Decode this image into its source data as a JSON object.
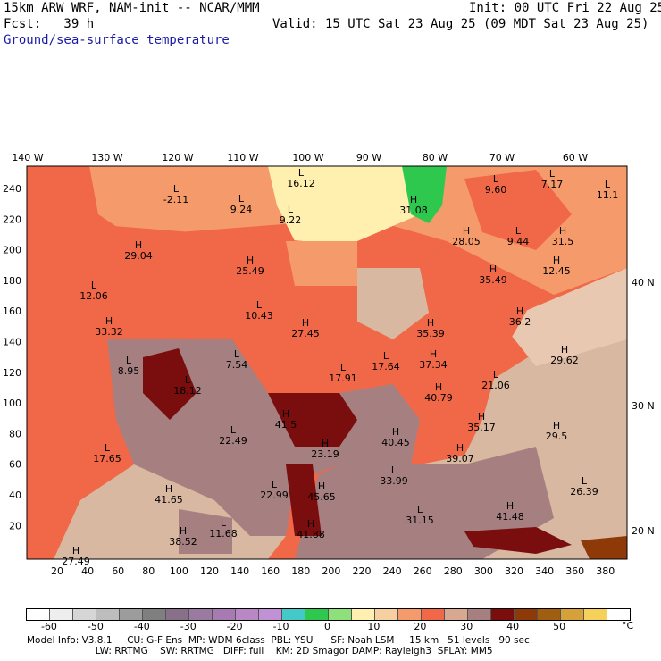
{
  "header": {
    "model_title": "15km ARW WRF, NAM-init -- NCAR/MMM",
    "init": "Init: 00 UTC Fri 22 Aug 25",
    "fcst": "Fcst:   39 h",
    "valid": "Valid: 15 UTC Sat 23 Aug 25 (09 MDT Sat 23 Aug 25)",
    "field": "Ground/sea-surface temperature"
  },
  "map": {
    "lon_labels": [
      "140 W",
      "130 W",
      "120 W",
      "110 W",
      "100 W",
      "90 W",
      "80 W",
      "70 W",
      "60 W"
    ],
    "lat_labels": [
      "40 N",
      "30 N",
      "20 N"
    ],
    "y_grid_labels": [
      "240",
      "220",
      "200",
      "180",
      "160",
      "140",
      "120",
      "100",
      "80",
      "60",
      "40",
      "20"
    ],
    "x_grid_labels": [
      "20",
      "40",
      "60",
      "80",
      "100",
      "120",
      "140",
      "160",
      "180",
      "200",
      "220",
      "240",
      "260",
      "280",
      "300",
      "320",
      "340",
      "360",
      "380"
    ],
    "markers": [
      {
        "t": "L",
        "v": "-2.11"
      },
      {
        "t": "L",
        "v": "9.24"
      },
      {
        "t": "L",
        "v": "9.22"
      },
      {
        "t": "L",
        "v": "16.12"
      },
      {
        "t": "H",
        "v": "31.08"
      },
      {
        "t": "L",
        "v": "9.60"
      },
      {
        "t": "L",
        "v": "7.17"
      },
      {
        "t": "L",
        "v": "11.1"
      },
      {
        "t": "H",
        "v": "29.04"
      },
      {
        "t": "H",
        "v": "25.49"
      },
      {
        "t": "H",
        "v": "28.05"
      },
      {
        "t": "L",
        "v": "9.44"
      },
      {
        "t": "H",
        "v": "31.5"
      },
      {
        "t": "H",
        "v": "35.49"
      },
      {
        "t": "H",
        "v": "12.45"
      },
      {
        "t": "L",
        "v": "12.06"
      },
      {
        "t": "L",
        "v": "10.43"
      },
      {
        "t": "H",
        "v": "27.45"
      },
      {
        "t": "H",
        "v": "33.32"
      },
      {
        "t": "H",
        "v": "35.39"
      },
      {
        "t": "H",
        "v": "36.2"
      },
      {
        "t": "H",
        "v": "29.62"
      },
      {
        "t": "L",
        "v": "8.95"
      },
      {
        "t": "L",
        "v": "7.54"
      },
      {
        "t": "L",
        "v": "17.64"
      },
      {
        "t": "L",
        "v": "17.91"
      },
      {
        "t": "L",
        "v": "18.12"
      },
      {
        "t": "H",
        "v": "37.34"
      },
      {
        "t": "L",
        "v": "21.06"
      },
      {
        "t": "H",
        "v": "40.79"
      },
      {
        "t": "H",
        "v": "41.5"
      },
      {
        "t": "H",
        "v": "35.17"
      },
      {
        "t": "L",
        "v": "22.49"
      },
      {
        "t": "H",
        "v": "40.45"
      },
      {
        "t": "H",
        "v": "29.5"
      },
      {
        "t": "H",
        "v": "23.19"
      },
      {
        "t": "L",
        "v": "17.65"
      },
      {
        "t": "H",
        "v": "39.07"
      },
      {
        "t": "L",
        "v": "33.99"
      },
      {
        "t": "L",
        "v": "26.39"
      },
      {
        "t": "L",
        "v": "22.99"
      },
      {
        "t": "H",
        "v": "41.65"
      },
      {
        "t": "H",
        "v": "45.65"
      },
      {
        "t": "L",
        "v": "31.15"
      },
      {
        "t": "H",
        "v": "41.48"
      },
      {
        "t": "L",
        "v": "11.68"
      },
      {
        "t": "H",
        "v": "38.52"
      },
      {
        "t": "H",
        "v": "41.88"
      },
      {
        "t": "H",
        "v": "27.49"
      }
    ]
  },
  "colorbar": {
    "colors": [
      "#ffffff",
      "#eeeeee",
      "#d6d6d6",
      "#bdbdbd",
      "#9c9c9c",
      "#7f7f7f",
      "#877088",
      "#9b7aa2",
      "#a87ab2",
      "#b887c4",
      "#c191d5",
      "#45c8c8",
      "#2dc84d",
      "#8de07a",
      "#fff0b0",
      "#f6d0a0",
      "#f59a6a",
      "#f06848",
      "#d8a890",
      "#a68080",
      "#7a0d0d",
      "#8e3a08",
      "#a05f10",
      "#d6a03a",
      "#f5d05a",
      "#ffffff"
    ],
    "tick_labels": [
      "-60",
      "-50",
      "-40",
      "-30",
      "-20",
      "-10",
      "0",
      "10",
      "20",
      "30",
      "40",
      "50"
    ],
    "unit": "°C"
  },
  "footer": {
    "line1": "Model Info: V3.8.1     CU: G-F Ens  MP: WDM 6class  PBL: YSU      SF: Noah LSM     15 km   51 levels   90 sec",
    "line2": "                       LW: RRTMG    SW: RRTMG   DIFF: full    KM: 2D Smagor DAMP: Rayleigh3  SFLAY: MM5"
  }
}
